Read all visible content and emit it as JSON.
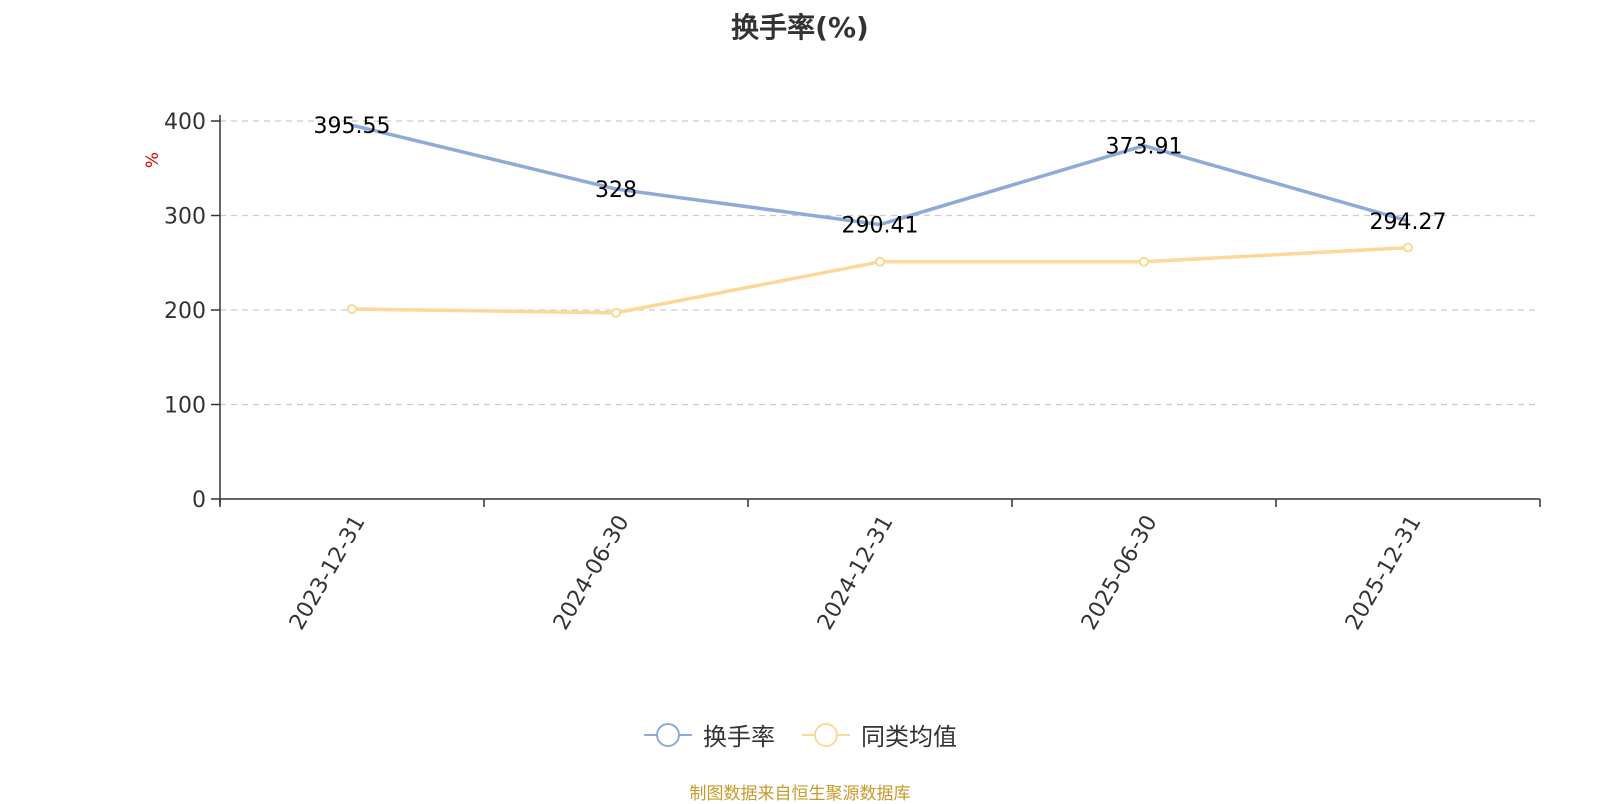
{
  "chart_data": {
    "type": "line",
    "title": "换手率(%)",
    "ylabel": "%",
    "xlabel": "",
    "categories": [
      "2023-12-31",
      "2024-06-30",
      "2024-12-31",
      "2025-06-30",
      "2025-12-31"
    ],
    "ylim": [
      0,
      400
    ],
    "yticks": [
      0,
      100,
      200,
      300,
      400
    ],
    "grid": true,
    "legend_position": "bottom",
    "series": [
      {
        "name": "换手率",
        "values": [
          395.55,
          328,
          290.41,
          373.91,
          294.27
        ],
        "color": "#8eaad8",
        "data_labels": [
          "395.55",
          "328",
          "290.41",
          "373.91",
          "294.27"
        ],
        "show_labels": true
      },
      {
        "name": "同类均值",
        "values": [
          201,
          197,
          251,
          251,
          266
        ],
        "color": "#fcd898",
        "show_labels": false
      }
    ]
  },
  "source": "制图数据来自恒生聚源数据库"
}
